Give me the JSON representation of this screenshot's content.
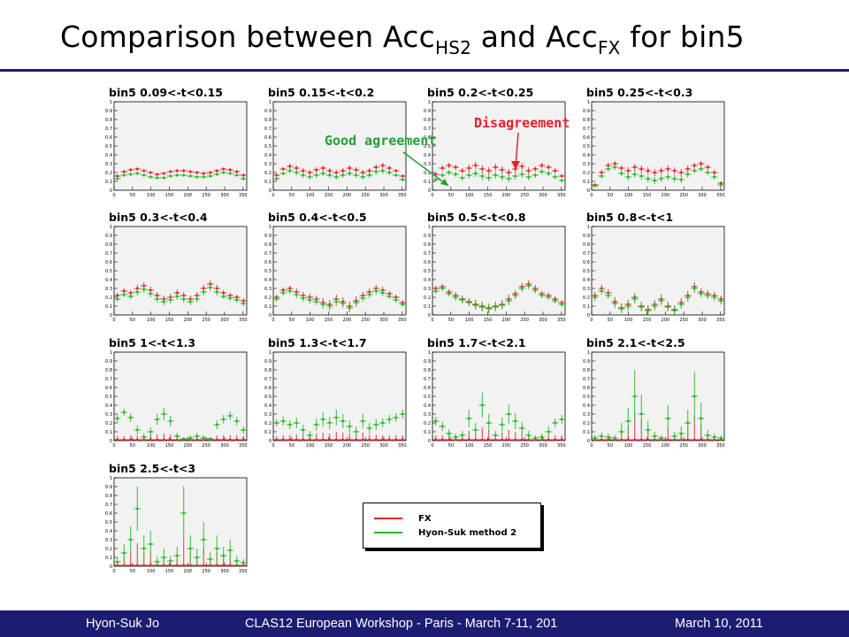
{
  "slide": {
    "title_prefix": "Comparison between Acc",
    "title_sub1": "HS2",
    "title_mid": " and Acc",
    "title_sub2": "FX",
    "title_suffix": " for bin5"
  },
  "footer": {
    "left": "Hyon-Suk Jo",
    "center": "CLAS12 European Workshop - Paris - March 7-11, 201",
    "right": "March 10, 2011"
  },
  "annotations": {
    "good": "Good agreement",
    "bad": "Disagreement"
  },
  "legend": [
    {
      "label": "FX",
      "color": "#e8202a"
    },
    {
      "label": "Hyon-Suk method 2",
      "color": "#22b822"
    }
  ],
  "chart_data": {
    "type": "scatter",
    "x_ticks": [
      "0",
      "50",
      "100",
      "150",
      "200",
      "250",
      "300",
      "350"
    ],
    "y_ticks": [
      "0",
      "0.1",
      "0.2",
      "0.3",
      "0.4",
      "0.5",
      "0.6",
      "0.7",
      "0.8",
      "0.9",
      "1"
    ],
    "xlim": [
      0,
      360
    ],
    "ylim": [
      0,
      1
    ],
    "grid": false,
    "legend_position": "bottom-center",
    "series_colors": {
      "FX": "#e8202a",
      "Hyon-Suk method 2": "#22b822"
    },
    "panels": [
      {
        "title": "bin5 0.09<-t<0.15",
        "fx": [
          0.16,
          0.21,
          0.23,
          0.24,
          0.22,
          0.2,
          0.18,
          0.19,
          0.21,
          0.22,
          0.22,
          0.21,
          0.2,
          0.19,
          0.2,
          0.22,
          0.24,
          0.23,
          0.21,
          0.17
        ],
        "hs2": [
          0.13,
          0.17,
          0.18,
          0.19,
          0.17,
          0.15,
          0.14,
          0.14,
          0.16,
          0.17,
          0.17,
          0.16,
          0.15,
          0.15,
          0.16,
          0.18,
          0.2,
          0.19,
          0.17,
          0.13
        ],
        "err": [
          0.02,
          0.02,
          0.02,
          0.02,
          0.02,
          0.02,
          0.02,
          0.02,
          0.02,
          0.02,
          0.02,
          0.02,
          0.02,
          0.02,
          0.02,
          0.02,
          0.02,
          0.02,
          0.02,
          0.02
        ]
      },
      {
        "title": "bin5 0.15<-t<0.2",
        "fx": [
          0.17,
          0.24,
          0.27,
          0.25,
          0.22,
          0.2,
          0.23,
          0.25,
          0.22,
          0.2,
          0.22,
          0.25,
          0.23,
          0.2,
          0.22,
          0.26,
          0.28,
          0.25,
          0.22,
          0.16
        ],
        "hs2": [
          0.13,
          0.19,
          0.22,
          0.2,
          0.17,
          0.15,
          0.17,
          0.19,
          0.17,
          0.15,
          0.17,
          0.19,
          0.17,
          0.15,
          0.17,
          0.21,
          0.22,
          0.2,
          0.17,
          0.12
        ],
        "err": [
          0.02,
          0.02,
          0.03,
          0.03,
          0.03,
          0.03,
          0.03,
          0.03,
          0.03,
          0.03,
          0.03,
          0.03,
          0.03,
          0.03,
          0.03,
          0.03,
          0.03,
          0.03,
          0.02,
          0.02
        ]
      },
      {
        "title": "bin5 0.2<-t<0.25",
        "fx": [
          0.18,
          0.25,
          0.28,
          0.26,
          0.22,
          0.25,
          0.28,
          0.24,
          0.22,
          0.26,
          0.23,
          0.2,
          0.24,
          0.27,
          0.22,
          0.24,
          0.28,
          0.26,
          0.22,
          0.16
        ],
        "hs2": [
          0.12,
          0.17,
          0.2,
          0.18,
          0.14,
          0.17,
          0.19,
          0.16,
          0.14,
          0.17,
          0.15,
          0.13,
          0.16,
          0.18,
          0.15,
          0.17,
          0.21,
          0.19,
          0.15,
          0.11
        ],
        "err": [
          0.02,
          0.03,
          0.03,
          0.03,
          0.03,
          0.04,
          0.04,
          0.04,
          0.04,
          0.04,
          0.04,
          0.04,
          0.04,
          0.04,
          0.04,
          0.03,
          0.03,
          0.03,
          0.03,
          0.02
        ]
      },
      {
        "title": "bin5 0.25<-t<0.3",
        "fx": [
          0.06,
          0.2,
          0.28,
          0.3,
          0.25,
          0.22,
          0.26,
          0.24,
          0.22,
          0.2,
          0.22,
          0.24,
          0.22,
          0.2,
          0.24,
          0.28,
          0.3,
          0.26,
          0.2,
          0.08
        ],
        "hs2": [
          0.05,
          0.16,
          0.24,
          0.26,
          0.19,
          0.15,
          0.18,
          0.16,
          0.13,
          0.11,
          0.13,
          0.15,
          0.13,
          0.12,
          0.18,
          0.22,
          0.24,
          0.2,
          0.15,
          0.06
        ],
        "err": [
          0.02,
          0.03,
          0.03,
          0.03,
          0.03,
          0.04,
          0.04,
          0.04,
          0.04,
          0.04,
          0.04,
          0.04,
          0.04,
          0.04,
          0.04,
          0.03,
          0.03,
          0.03,
          0.03,
          0.02
        ]
      },
      {
        "title": "bin5 0.3<-t<0.4",
        "fx": [
          0.22,
          0.27,
          0.25,
          0.3,
          0.33,
          0.28,
          0.22,
          0.18,
          0.2,
          0.25,
          0.22,
          0.18,
          0.22,
          0.3,
          0.35,
          0.3,
          0.25,
          0.22,
          0.2,
          0.16
        ],
        "hs2": [
          0.18,
          0.23,
          0.21,
          0.26,
          0.29,
          0.24,
          0.18,
          0.15,
          0.17,
          0.21,
          0.18,
          0.15,
          0.18,
          0.26,
          0.31,
          0.26,
          0.21,
          0.19,
          0.17,
          0.13
        ],
        "err": [
          0.03,
          0.03,
          0.03,
          0.04,
          0.04,
          0.04,
          0.04,
          0.04,
          0.04,
          0.04,
          0.04,
          0.04,
          0.04,
          0.04,
          0.04,
          0.04,
          0.03,
          0.03,
          0.03,
          0.03
        ]
      },
      {
        "title": "bin5 0.4<-t<0.5",
        "fx": [
          0.2,
          0.28,
          0.3,
          0.26,
          0.22,
          0.2,
          0.18,
          0.14,
          0.12,
          0.18,
          0.15,
          0.1,
          0.16,
          0.22,
          0.26,
          0.3,
          0.28,
          0.24,
          0.2,
          0.14
        ],
        "hs2": [
          0.18,
          0.25,
          0.27,
          0.23,
          0.19,
          0.17,
          0.15,
          0.12,
          0.1,
          0.15,
          0.13,
          0.08,
          0.14,
          0.19,
          0.23,
          0.27,
          0.25,
          0.21,
          0.17,
          0.12
        ],
        "err": [
          0.03,
          0.03,
          0.03,
          0.04,
          0.04,
          0.04,
          0.04,
          0.05,
          0.05,
          0.05,
          0.05,
          0.05,
          0.05,
          0.04,
          0.04,
          0.04,
          0.04,
          0.03,
          0.03,
          0.03
        ]
      },
      {
        "title": "bin5 0.5<-t<0.8",
        "fx": [
          0.3,
          0.32,
          0.26,
          0.22,
          0.18,
          0.15,
          0.12,
          0.1,
          0.08,
          0.1,
          0.12,
          0.18,
          0.24,
          0.32,
          0.35,
          0.3,
          0.24,
          0.22,
          0.18,
          0.14
        ],
        "hs2": [
          0.27,
          0.3,
          0.24,
          0.2,
          0.17,
          0.14,
          0.11,
          0.09,
          0.07,
          0.09,
          0.11,
          0.16,
          0.22,
          0.3,
          0.33,
          0.28,
          0.22,
          0.2,
          0.16,
          0.12
        ],
        "err": [
          0.03,
          0.03,
          0.03,
          0.04,
          0.04,
          0.04,
          0.05,
          0.05,
          0.05,
          0.05,
          0.05,
          0.05,
          0.04,
          0.04,
          0.04,
          0.04,
          0.03,
          0.03,
          0.03,
          0.03
        ]
      },
      {
        "title": "bin5 0.8<-t<1",
        "fx": [
          0.22,
          0.3,
          0.25,
          0.15,
          0.08,
          0.12,
          0.2,
          0.1,
          0.06,
          0.12,
          0.18,
          0.1,
          0.06,
          0.14,
          0.22,
          0.32,
          0.26,
          0.24,
          0.22,
          0.18
        ],
        "hs2": [
          0.2,
          0.27,
          0.22,
          0.13,
          0.07,
          0.1,
          0.18,
          0.09,
          0.05,
          0.1,
          0.16,
          0.09,
          0.05,
          0.12,
          0.2,
          0.3,
          0.24,
          0.22,
          0.2,
          0.16
        ],
        "err": [
          0.04,
          0.04,
          0.04,
          0.05,
          0.05,
          0.05,
          0.05,
          0.05,
          0.05,
          0.05,
          0.05,
          0.05,
          0.05,
          0.05,
          0.05,
          0.05,
          0.04,
          0.04,
          0.04,
          0.04
        ]
      },
      {
        "title": "bin5 1<-t<1.3",
        "fx": [
          0.01,
          0.01,
          0.01,
          0.01,
          0.01,
          0.01,
          0.01,
          0.01,
          0.01,
          0.01,
          0.01,
          0.01,
          0.01,
          0.01,
          0.01,
          0.01,
          0.01,
          0.01,
          0.01,
          0.01
        ],
        "hs2": [
          0.25,
          0.32,
          0.26,
          0.12,
          0.04,
          0.1,
          0.24,
          0.3,
          0.22,
          0.05,
          0.02,
          0.03,
          0.05,
          0.03,
          0.02,
          0.18,
          0.24,
          0.28,
          0.22,
          0.12
        ],
        "err": [
          0.04,
          0.04,
          0.05,
          0.05,
          0.04,
          0.05,
          0.06,
          0.07,
          0.06,
          0.04,
          0.02,
          0.03,
          0.04,
          0.03,
          0.02,
          0.05,
          0.05,
          0.05,
          0.05,
          0.04
        ]
      },
      {
        "title": "bin5 1.3<-t<1.7",
        "fx": [
          0.01,
          0.01,
          0.01,
          0.01,
          0.01,
          0.01,
          0.01,
          0.01,
          0.01,
          0.01,
          0.01,
          0.01,
          0.01,
          0.01,
          0.01,
          0.01,
          0.01,
          0.01,
          0.01,
          0.01
        ],
        "hs2": [
          0.2,
          0.22,
          0.18,
          0.2,
          0.12,
          0.06,
          0.18,
          0.24,
          0.2,
          0.26,
          0.22,
          0.16,
          0.1,
          0.22,
          0.14,
          0.18,
          0.2,
          0.24,
          0.26,
          0.3
        ],
        "err": [
          0.04,
          0.05,
          0.05,
          0.06,
          0.06,
          0.05,
          0.07,
          0.08,
          0.07,
          0.09,
          0.08,
          0.07,
          0.06,
          0.08,
          0.06,
          0.06,
          0.05,
          0.05,
          0.05,
          0.05
        ]
      },
      {
        "title": "bin5 1.7<-t<2.1",
        "fx": [
          0.01,
          0.01,
          0.01,
          0.01,
          0.01,
          0.01,
          0.01,
          0.01,
          0.01,
          0.01,
          0.01,
          0.01,
          0.01,
          0.01,
          0.01,
          0.01,
          0.01,
          0.01,
          0.01,
          0.01
        ],
        "hs2": [
          0.22,
          0.16,
          0.08,
          0.04,
          0.06,
          0.25,
          0.12,
          0.4,
          0.2,
          0.06,
          0.18,
          0.3,
          0.22,
          0.14,
          0.06,
          0.03,
          0.04,
          0.1,
          0.2,
          0.24
        ],
        "err": [
          0.05,
          0.05,
          0.05,
          0.04,
          0.05,
          0.1,
          0.08,
          0.14,
          0.1,
          0.05,
          0.08,
          0.11,
          0.09,
          0.07,
          0.05,
          0.03,
          0.04,
          0.06,
          0.05,
          0.05
        ]
      },
      {
        "title": "bin5 2.1<-t<2.5",
        "fx": [
          0.01,
          0.01,
          0.01,
          0.01,
          0.01,
          0.01,
          0.01,
          0.01,
          0.01,
          0.01,
          0.01,
          0.01,
          0.01,
          0.01,
          0.01,
          0.01,
          0.01,
          0.01,
          0.01,
          0.01
        ],
        "hs2": [
          0.03,
          0.05,
          0.04,
          0.03,
          0.1,
          0.22,
          0.5,
          0.3,
          0.12,
          0.05,
          0.03,
          0.25,
          0.05,
          0.08,
          0.2,
          0.5,
          0.25,
          0.06,
          0.04,
          0.03
        ],
        "err": [
          0.03,
          0.04,
          0.04,
          0.03,
          0.1,
          0.15,
          0.3,
          0.22,
          0.1,
          0.05,
          0.03,
          0.15,
          0.05,
          0.08,
          0.15,
          0.28,
          0.18,
          0.06,
          0.04,
          0.03
        ]
      },
      {
        "title": "bin5 2.5<-t<3",
        "fx": [
          0.01,
          0.01,
          0.01,
          0.01,
          0.01,
          0.01,
          0.01,
          0.01,
          0.01,
          0.01,
          0.01,
          0.01,
          0.01,
          0.01,
          0.01,
          0.01,
          0.01,
          0.01,
          0.01,
          0.01
        ],
        "hs2": [
          0.05,
          0.15,
          0.3,
          0.65,
          0.2,
          0.25,
          0.05,
          0.1,
          0.06,
          0.12,
          0.6,
          0.2,
          0.1,
          0.3,
          0.08,
          0.2,
          0.12,
          0.18,
          0.06,
          0.04
        ],
        "err": [
          0.05,
          0.1,
          0.15,
          0.25,
          0.15,
          0.15,
          0.06,
          0.1,
          0.06,
          0.1,
          0.3,
          0.15,
          0.1,
          0.2,
          0.08,
          0.15,
          0.1,
          0.12,
          0.06,
          0.04
        ]
      }
    ]
  }
}
